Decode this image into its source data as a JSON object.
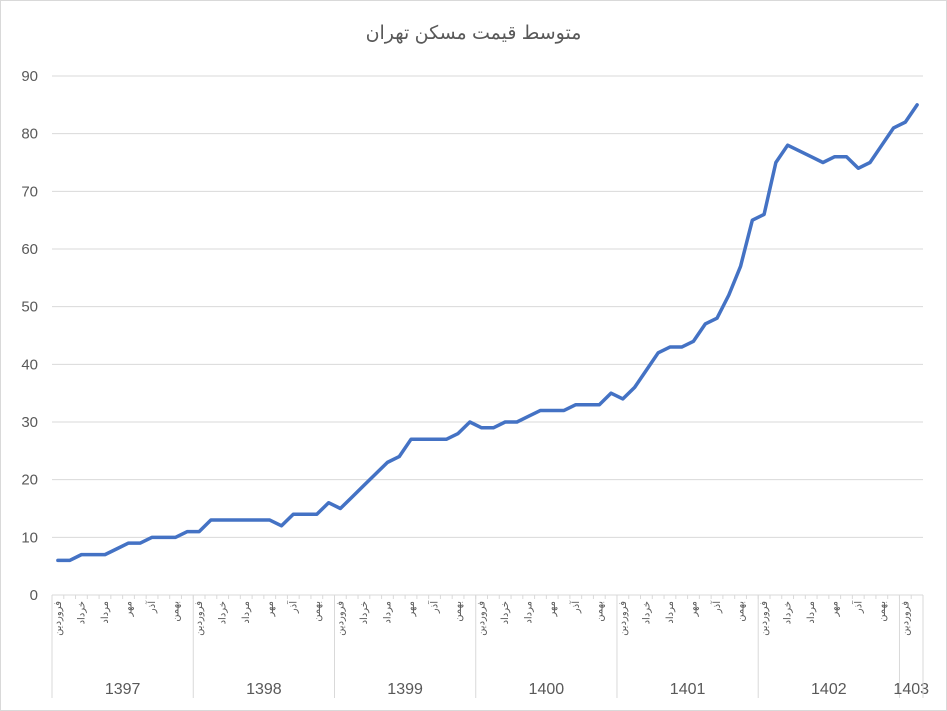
{
  "chart_data": {
    "type": "line",
    "title": "متوسط قیمت مسکن تهران",
    "xlabel": "",
    "ylabel": "",
    "ylim": [
      0,
      90
    ],
    "yticks": [
      0,
      10,
      20,
      30,
      40,
      50,
      60,
      70,
      80,
      90
    ],
    "grid": "horizontal",
    "legend": "none",
    "line_color": "#4472c4",
    "years": [
      "1397",
      "1398",
      "1399",
      "1400",
      "1401",
      "1402",
      "1403"
    ],
    "month_labels": [
      "فروردین",
      "خرداد",
      "مرداد",
      "مهر",
      "آذر",
      "بهمن"
    ],
    "series": [
      {
        "values": [
          6,
          6,
          7,
          7,
          7,
          8,
          9,
          9,
          10,
          10,
          10,
          11,
          11,
          13,
          13,
          13,
          13,
          13,
          13,
          12,
          14,
          14,
          14,
          16,
          15,
          17,
          19,
          21,
          23,
          24,
          27,
          27,
          27,
          27,
          28,
          30,
          29,
          29,
          30,
          30,
          31,
          32,
          32,
          32,
          33,
          33,
          33,
          35,
          34,
          36,
          39,
          42,
          43,
          43,
          44,
          47,
          48,
          52,
          57,
          65,
          66,
          75,
          78,
          77,
          76,
          75,
          76,
          76,
          74,
          75,
          78,
          81,
          82,
          85
        ]
      }
    ]
  }
}
